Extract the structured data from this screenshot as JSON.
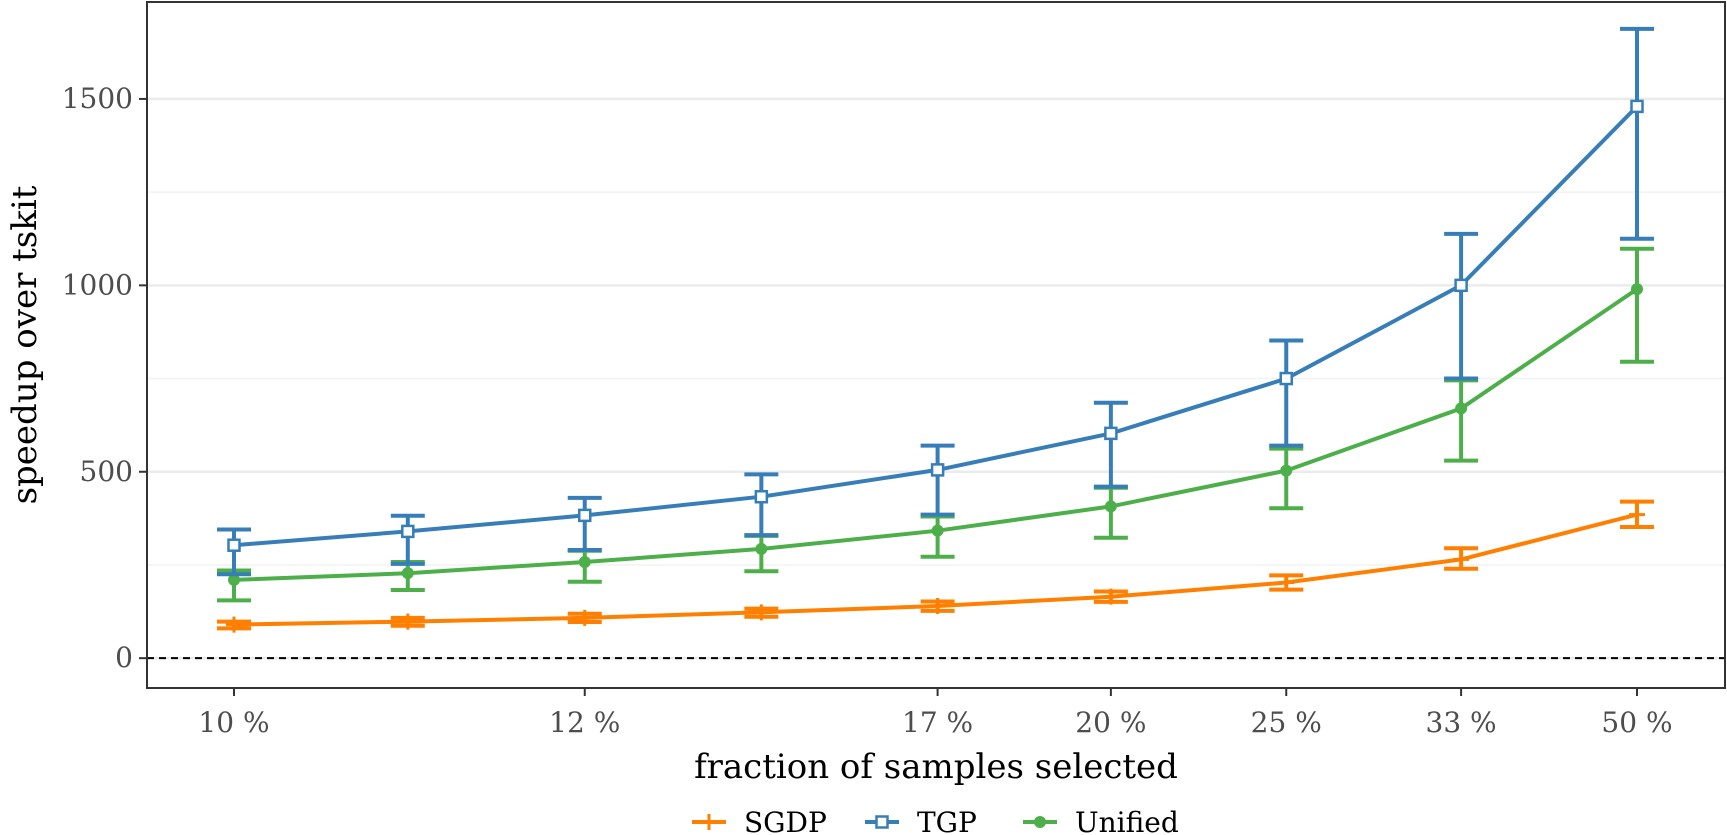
{
  "chart_data": {
    "type": "line",
    "xlabel": "fraction of samples selected",
    "ylabel": "speedup over tskit",
    "x": [
      0.1,
      0.111,
      0.125,
      0.143,
      0.167,
      0.2,
      0.25,
      0.333,
      0.5
    ],
    "x_ticks": [
      {
        "value": 0.1,
        "label": "10 %"
      },
      {
        "value": 0.125,
        "label": "12 %"
      },
      {
        "value": 0.167,
        "label": "17 %"
      },
      {
        "value": 0.2,
        "label": "20 %"
      },
      {
        "value": 0.25,
        "label": "25 %"
      },
      {
        "value": 0.333,
        "label": "33 %"
      },
      {
        "value": 0.5,
        "label": "50 %"
      }
    ],
    "y_ticks": [
      0,
      500,
      1000,
      1500
    ],
    "xlim": [
      0.1,
      0.5
    ],
    "ylim": [
      -80,
      1760
    ],
    "x_scale": "reciprocal",
    "grid": true,
    "reference_line": {
      "y": 0,
      "style": "dashed"
    },
    "legend_position": "bottom",
    "series": [
      {
        "name": "SGDP",
        "color": "#ff7f00",
        "marker": "plus",
        "values": [
          90,
          98,
          108,
          123,
          140,
          165,
          203,
          265,
          385
        ],
        "err_low": [
          80,
          87,
          97,
          111,
          127,
          151,
          184,
          240,
          352
        ],
        "err_high": [
          98,
          108,
          119,
          133,
          152,
          179,
          222,
          295,
          420
        ]
      },
      {
        "name": "TGP",
        "color": "#377eb8",
        "marker": "square",
        "values": [
          303,
          340,
          383,
          433,
          505,
          603,
          750,
          1000,
          1480
        ],
        "err_low": [
          225,
          253,
          290,
          330,
          385,
          460,
          570,
          750,
          1125
        ],
        "err_high": [
          345,
          382,
          430,
          493,
          570,
          685,
          852,
          1138,
          1688
        ]
      },
      {
        "name": "Unified",
        "color": "#4daf4a",
        "marker": "circle",
        "values": [
          210,
          228,
          258,
          293,
          342,
          407,
          503,
          670,
          990
        ],
        "err_low": [
          155,
          183,
          205,
          233,
          272,
          323,
          402,
          530,
          795
        ],
        "err_high": [
          235,
          258,
          288,
          328,
          380,
          457,
          562,
          745,
          1098
        ]
      }
    ]
  }
}
